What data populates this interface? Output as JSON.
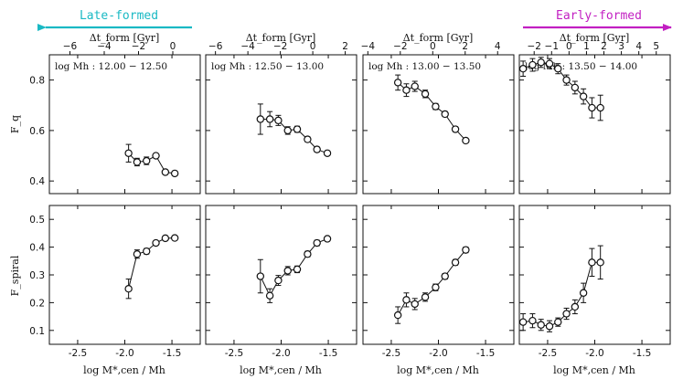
{
  "banners": {
    "left": {
      "label": "Late-formed",
      "color": "#1ab9c4"
    },
    "right": {
      "label": "Early-formed",
      "color": "#c21fc2"
    }
  },
  "chart_data": {
    "type": "scatter",
    "title": "",
    "top_axis_label": "Δt_form [Gyr]",
    "xlabel": "log M*,cen / Mh",
    "row_ylabels": [
      "F_q",
      "F_spiral"
    ],
    "ylim": [
      [
        0.35,
        0.9
      ],
      [
        0.05,
        0.55
      ]
    ],
    "yticks": [
      [
        0.4,
        0.6,
        0.8
      ],
      [
        0.1,
        0.2,
        0.3,
        0.4,
        0.5
      ]
    ],
    "xlim": [
      [
        -2.8,
        -1.2
      ],
      [
        -2.8,
        -1.2
      ],
      [
        -2.8,
        -1.2
      ],
      [
        -2.8,
        -1.2
      ]
    ],
    "xticks": [
      -2.5,
      -2.0,
      -1.5
    ],
    "xtick_labels": [
      "-2.5",
      "-2.0",
      "-1.5"
    ],
    "top_xlim": [
      [
        -7.2,
        1.6
      ],
      [
        -6.6,
        2.7
      ],
      [
        -4.3,
        5.0
      ],
      [
        -2.85,
        5.8
      ]
    ],
    "top_xticks": [
      [
        -6,
        -4,
        -2,
        0
      ],
      [
        -6,
        -4,
        -2,
        0,
        2
      ],
      [
        -4,
        -2,
        0,
        2,
        4
      ],
      [
        -2,
        -1,
        0,
        1,
        2,
        3,
        4,
        5
      ]
    ],
    "top_xtick_labels": [
      [
        "−6",
        "−4",
        "−2",
        "0"
      ],
      [
        "−6",
        "−4",
        "−2",
        "0",
        "2"
      ],
      [
        "−4",
        "−2",
        "0",
        "2",
        "4"
      ],
      [
        "−2",
        "−1",
        "0",
        "1",
        "2",
        "3",
        "4",
        "5"
      ]
    ],
    "panels_top": [
      {
        "name": "Fq-mass-12.0",
        "label": "log Mh : 12.00 − 12.50",
        "x": [
          -1.96,
          -1.87,
          -1.77,
          -1.67,
          -1.57,
          -1.47
        ],
        "y": [
          0.51,
          0.475,
          0.48,
          0.5,
          0.435,
          0.43
        ],
        "err": [
          0.035,
          0.015,
          0.015,
          0.008,
          0.006,
          0.008
        ]
      },
      {
        "name": "Fq-mass-12.5",
        "label": "log Mh : 12.50 − 13.00",
        "x": [
          -2.22,
          -2.12,
          -2.03,
          -1.93,
          -1.83,
          -1.72,
          -1.62,
          -1.51
        ],
        "y": [
          0.645,
          0.645,
          0.64,
          0.6,
          0.605,
          0.565,
          0.525,
          0.51
        ],
        "err": [
          0.06,
          0.03,
          0.02,
          0.015,
          0.012,
          0.01,
          0.01,
          0.008
        ]
      },
      {
        "name": "Fq-mass-13.0",
        "label": "log Mh : 13.00 − 13.50",
        "x": [
          -2.43,
          -2.34,
          -2.25,
          -2.14,
          -2.03,
          -1.93,
          -1.82,
          -1.71
        ],
        "y": [
          0.79,
          0.76,
          0.775,
          0.745,
          0.695,
          0.665,
          0.605,
          0.56
        ],
        "err": [
          0.03,
          0.025,
          0.02,
          0.015,
          0.012,
          0.01,
          0.01,
          0.008
        ]
      },
      {
        "name": "Fq-mass-13.5",
        "label": "log Mh : 13.50 − 14.00",
        "x": [
          -2.76,
          -2.66,
          -2.57,
          -2.48,
          -2.39,
          -2.3,
          -2.21,
          -2.12,
          -2.03,
          -1.94
        ],
        "y": [
          0.845,
          0.86,
          0.87,
          0.865,
          0.845,
          0.8,
          0.77,
          0.735,
          0.69,
          0.69
        ],
        "err": [
          0.03,
          0.025,
          0.02,
          0.02,
          0.02,
          0.02,
          0.025,
          0.03,
          0.04,
          0.05
        ]
      }
    ],
    "panels_bottom": [
      {
        "name": "Fspiral-mass-12.0",
        "x": [
          -1.96,
          -1.87,
          -1.77,
          -1.67,
          -1.57,
          -1.47
        ],
        "y": [
          0.25,
          0.375,
          0.385,
          0.415,
          0.432,
          0.433
        ],
        "err": [
          0.035,
          0.015,
          0.01,
          0.008,
          0.006,
          0.006
        ]
      },
      {
        "name": "Fspiral-mass-12.5",
        "x": [
          -2.22,
          -2.12,
          -2.03,
          -1.93,
          -1.83,
          -1.72,
          -1.62,
          -1.51
        ],
        "y": [
          0.295,
          0.225,
          0.28,
          0.315,
          0.32,
          0.375,
          0.415,
          0.43
        ],
        "err": [
          0.06,
          0.025,
          0.018,
          0.015,
          0.012,
          0.01,
          0.01,
          0.008
        ]
      },
      {
        "name": "Fspiral-mass-13.0",
        "x": [
          -2.43,
          -2.34,
          -2.25,
          -2.14,
          -2.03,
          -1.93,
          -1.82,
          -1.71
        ],
        "y": [
          0.155,
          0.21,
          0.195,
          0.22,
          0.255,
          0.295,
          0.345,
          0.39
        ],
        "err": [
          0.03,
          0.025,
          0.02,
          0.015,
          0.012,
          0.01,
          0.01,
          0.01
        ]
      },
      {
        "name": "Fspiral-mass-13.5",
        "x": [
          -2.76,
          -2.66,
          -2.57,
          -2.48,
          -2.39,
          -2.3,
          -2.21,
          -2.12,
          -2.03,
          -1.94
        ],
        "y": [
          0.13,
          0.135,
          0.12,
          0.115,
          0.13,
          0.16,
          0.185,
          0.235,
          0.345,
          0.345
        ],
        "err": [
          0.03,
          0.025,
          0.02,
          0.02,
          0.015,
          0.02,
          0.025,
          0.035,
          0.05,
          0.06
        ]
      }
    ]
  }
}
